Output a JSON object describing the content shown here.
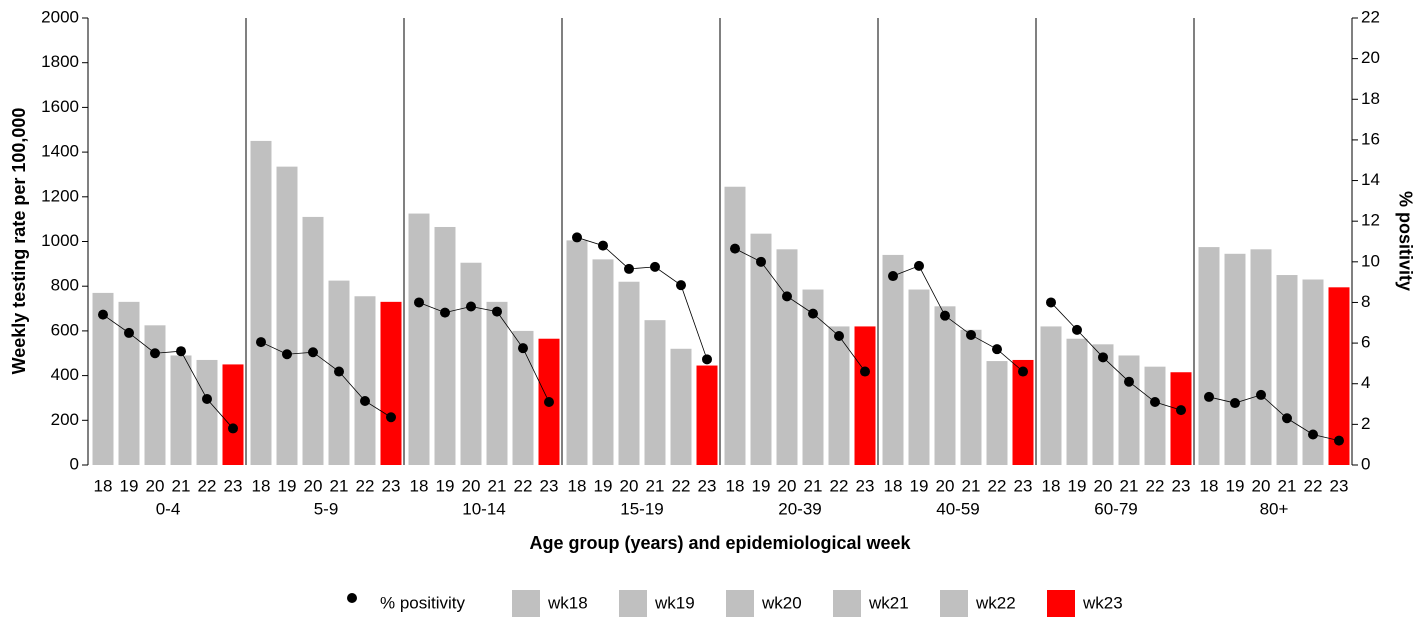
{
  "chart_data": {
    "type": "bar",
    "categories": [
      "0-4",
      "5-9",
      "10-14",
      "15-19",
      "20-39",
      "40-59",
      "60-79",
      "80+"
    ],
    "weeks": [
      "18",
      "19",
      "20",
      "21",
      "22",
      "23"
    ],
    "x_label": "Age group (years) and epidemiological week",
    "y_label": "Weekly testing rate per 100,000",
    "y2_label": "% positivity",
    "ylim": [
      0,
      2000
    ],
    "yticks": [
      0,
      200,
      400,
      600,
      800,
      1000,
      1200,
      1400,
      1600,
      1800,
      2000
    ],
    "y2lim": [
      0,
      22
    ],
    "y2ticks": [
      0,
      2,
      4,
      6,
      8,
      10,
      12,
      14,
      16,
      18,
      20,
      22
    ],
    "series": [
      {
        "name": "wk18",
        "color": "#c0c0c0",
        "values": [
          770,
          1450,
          1125,
          1005,
          1245,
          940,
          620,
          975
        ]
      },
      {
        "name": "wk19",
        "color": "#c0c0c0",
        "values": [
          730,
          1335,
          1065,
          920,
          1035,
          785,
          565,
          945
        ]
      },
      {
        "name": "wk20",
        "color": "#c0c0c0",
        "values": [
          625,
          1110,
          905,
          820,
          965,
          710,
          540,
          965
        ]
      },
      {
        "name": "wk21",
        "color": "#c0c0c0",
        "values": [
          490,
          825,
          730,
          648,
          785,
          605,
          490,
          850
        ]
      },
      {
        "name": "wk22",
        "color": "#c0c0c0",
        "values": [
          470,
          755,
          600,
          520,
          620,
          465,
          440,
          830
        ]
      },
      {
        "name": "wk23",
        "color": "#ff0000",
        "values": [
          450,
          730,
          565,
          445,
          620,
          470,
          415,
          795
        ]
      }
    ],
    "line_series": {
      "name": "% positivity",
      "axis": "y2",
      "color": "#000000",
      "values": [
        [
          7.4,
          6.5,
          5.5,
          5.6,
          3.25,
          1.8
        ],
        [
          6.05,
          5.45,
          5.55,
          4.6,
          3.15,
          2.35
        ],
        [
          8.0,
          7.5,
          7.8,
          7.55,
          5.75,
          3.1
        ],
        [
          11.2,
          10.8,
          9.65,
          9.75,
          8.85,
          5.2
        ],
        [
          10.65,
          10.0,
          8.3,
          7.45,
          6.35,
          4.6
        ],
        [
          9.3,
          9.8,
          7.35,
          6.4,
          5.7,
          4.6
        ],
        [
          8.0,
          6.65,
          5.3,
          4.1,
          3.1,
          2.7
        ],
        [
          3.35,
          3.05,
          3.45,
          2.3,
          1.5,
          1.2
        ]
      ]
    }
  }
}
